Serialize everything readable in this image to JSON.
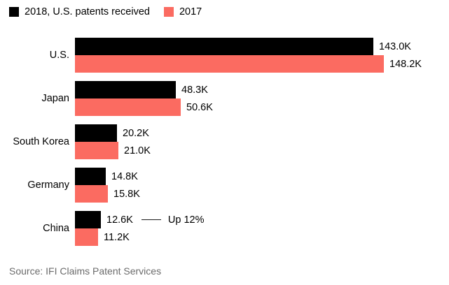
{
  "legend": {
    "series1_label": "2018, U.S. patents received",
    "series2_label": "2017"
  },
  "source": "Source: IFI Claims Patent Services",
  "colors": {
    "series_2018": "#000000",
    "series_2017": "#fb6b61",
    "annotation_line": "#1a1a1a",
    "source_text": "#6b6b6b",
    "background": "#ffffff"
  },
  "chart_data": {
    "type": "bar",
    "orientation": "horizontal",
    "title": "",
    "xlabel": "",
    "ylabel": "",
    "unit": "K (thousands of patents)",
    "grid": false,
    "legend_position": "top-left",
    "value_axis_max": 148.2,
    "categories": [
      "U.S.",
      "Japan",
      "South Korea",
      "Germany",
      "China"
    ],
    "series": [
      {
        "name": "2018, U.S. patents received",
        "color": "#000000",
        "values": [
          143.0,
          48.3,
          20.2,
          14.8,
          12.6
        ],
        "labels": [
          "143.0K",
          "48.3K",
          "20.2K",
          "14.8K",
          "12.6K"
        ]
      },
      {
        "name": "2017",
        "color": "#fb6b61",
        "values": [
          148.2,
          50.6,
          21.0,
          15.8,
          11.2
        ],
        "labels": [
          "148.2K",
          "50.6K",
          "21.0K",
          "15.8K",
          "11.2K"
        ]
      }
    ],
    "annotation": {
      "text": "Up 12%",
      "target_category": "China",
      "target_series": "2018, U.S. patents received"
    }
  }
}
